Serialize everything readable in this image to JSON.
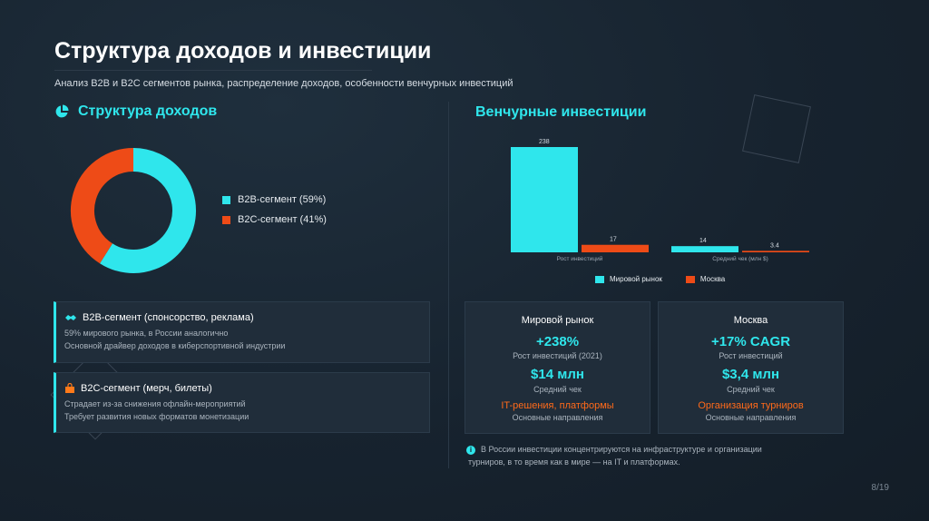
{
  "header": {
    "title": "Структура доходов и инвестиции",
    "subtitle": "Анализ B2B и B2C сегментов рынка, распределение доходов, особенности венчурных инвестиций"
  },
  "revenue": {
    "heading": "Структура доходов",
    "legend": [
      {
        "label": "B2B-сегмент (59%)",
        "color": "#2fe6ec"
      },
      {
        "label": "B2C-сегмент (41%)",
        "color": "#ee4b17"
      }
    ]
  },
  "venture": {
    "heading": "Венчурные инвестиции",
    "legend": [
      {
        "label": "Мировой рынок",
        "color": "#2fe6ec"
      },
      {
        "label": "Москва",
        "color": "#ee4b17"
      }
    ]
  },
  "cards": {
    "b2b": {
      "title": "B2B-сегмент (спонсорство, реклама)",
      "line1": "59% мирового рынка, в России аналогично",
      "line2": "Основной драйвер доходов в киберспортивной индустрии"
    },
    "b2c": {
      "title": "B2C-сегмент (мерч, билеты)",
      "line1": "Страдает из-за снижения офлайн-мероприятий",
      "line2": "Требует развития новых форматов монетизации"
    }
  },
  "stats": {
    "world": {
      "head": "Мировой рынок",
      "big1": "+238%",
      "small1": "Рост инвестиций (2021)",
      "big2": "$14 млн",
      "small2": "Средний чек",
      "orange": "IT-решения, платформы",
      "small3": "Основные направления"
    },
    "moscow": {
      "head": "Москва",
      "big1": "+17% CAGR",
      "small1": "Рост инвестиций",
      "big2": "$3,4 млн",
      "small2": "Средний чек",
      "orange": "Организация турниров",
      "small3": "Основные направления"
    }
  },
  "note": {
    "line1": "В России инвестиции концентрируются на инфраструктуре и организации",
    "line2": "турниров, в то время как в мире — на IT и платформах."
  },
  "page": "8/19",
  "chart_data": [
    {
      "type": "pie",
      "title": "",
      "categories": [
        "B2B-сегмент",
        "B2C-сегмент"
      ],
      "values": [
        59,
        41
      ],
      "colors": [
        "#2fe6ec",
        "#ee4b17"
      ],
      "donut": true,
      "legend": "right"
    },
    {
      "type": "bar",
      "title": "",
      "categories": [
        "Рост инвестиций",
        "Средний чек (млн $)"
      ],
      "series": [
        {
          "name": "Мировой рынок",
          "values": [
            238,
            14
          ],
          "color": "#2fe6ec"
        },
        {
          "name": "Москва",
          "values": [
            17,
            3.4
          ],
          "color": "#ee4b17"
        }
      ],
      "ylim": [
        0,
        238
      ],
      "grid": false,
      "legend": "bottom"
    }
  ]
}
